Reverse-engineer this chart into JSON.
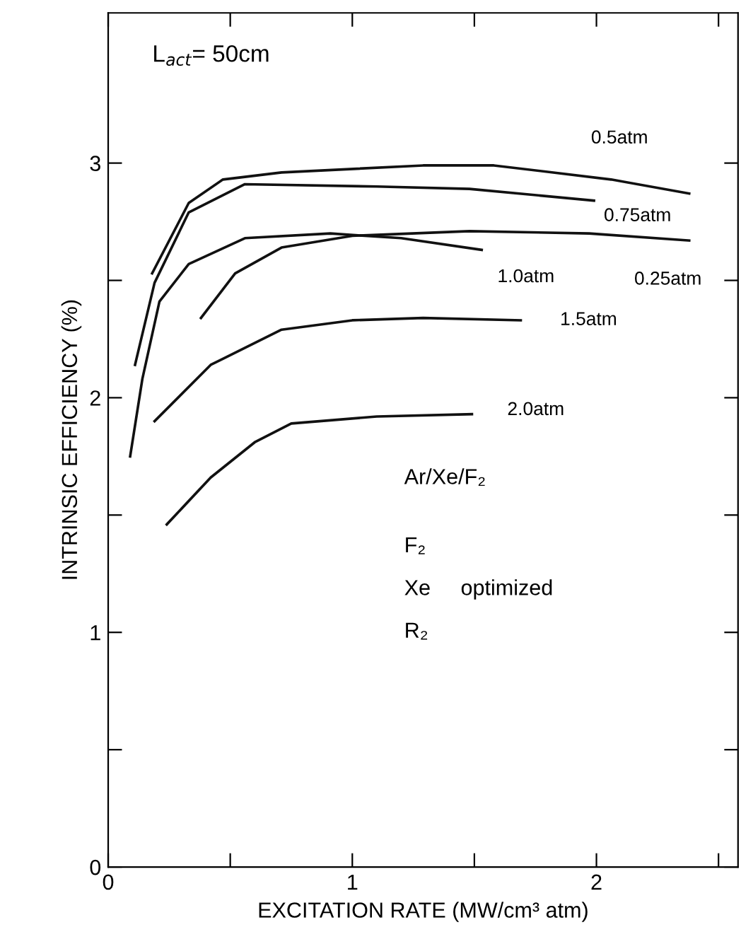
{
  "chart_data": {
    "type": "line",
    "xlabel": "EXCITATION RATE (MW/cm³ atm)",
    "ylabel": "INTRINSIC EFFICIENCY (%)",
    "xlim": [
      0,
      2.58
    ],
    "ylim": [
      0,
      3.64
    ],
    "xticks": [
      0,
      {
        "value": 0.5,
        "label": null
      },
      1,
      {
        "value": 1.5,
        "label": null
      },
      2,
      {
        "value": 2.5,
        "label": null
      }
    ],
    "yticks": [
      0,
      {
        "value": 0.5,
        "label": null
      },
      1,
      {
        "value": 1.5,
        "label": null
      },
      2,
      {
        "value": 2.5,
        "label": null
      },
      3
    ],
    "grid": false,
    "legend": false,
    "marker": "none",
    "line_style": "solid",
    "annotations": [
      "L$_{act}$= 50cm",
      "Ar/Xe/F₂",
      "F₂",
      "Xe     optimized",
      "R₂"
    ],
    "series": [
      {
        "name": "0.5atm",
        "color": "#111111",
        "x": [
          0.18,
          0.33,
          0.47,
          0.71,
          1.29,
          1.58,
          2.06,
          2.38
        ],
        "values": [
          2.53,
          2.83,
          2.93,
          2.96,
          2.99,
          2.99,
          2.93,
          2.87
        ]
      },
      {
        "name": "0.75atm",
        "color": "#111111",
        "x": [
          0.11,
          0.19,
          0.33,
          0.56,
          1.1,
          1.48,
          1.99
        ],
        "values": [
          2.14,
          2.49,
          2.79,
          2.91,
          2.9,
          2.89,
          2.84
        ]
      },
      {
        "name": "1.0atm",
        "color": "#111111",
        "x": [
          0.09,
          0.14,
          0.21,
          0.33,
          0.56,
          0.91,
          1.2,
          1.53
        ],
        "values": [
          1.75,
          2.08,
          2.41,
          2.57,
          2.68,
          2.7,
          2.68,
          2.63
        ]
      },
      {
        "name": "0.25atm",
        "color": "#111111",
        "x": [
          0.38,
          0.52,
          0.71,
          1.0,
          1.48,
          1.97,
          2.38
        ],
        "values": [
          2.34,
          2.53,
          2.64,
          2.69,
          2.71,
          2.7,
          2.67
        ]
      },
      {
        "name": "1.5atm",
        "color": "#111111",
        "x": [
          0.19,
          0.42,
          0.71,
          1.0,
          1.29,
          1.69
        ],
        "values": [
          1.9,
          2.14,
          2.29,
          2.33,
          2.34,
          2.33
        ]
      },
      {
        "name": "2.0atm",
        "color": "#111111",
        "x": [
          0.24,
          0.42,
          0.6,
          0.75,
          1.1,
          1.49
        ],
        "values": [
          1.46,
          1.66,
          1.81,
          1.89,
          1.92,
          1.93
        ]
      }
    ]
  }
}
